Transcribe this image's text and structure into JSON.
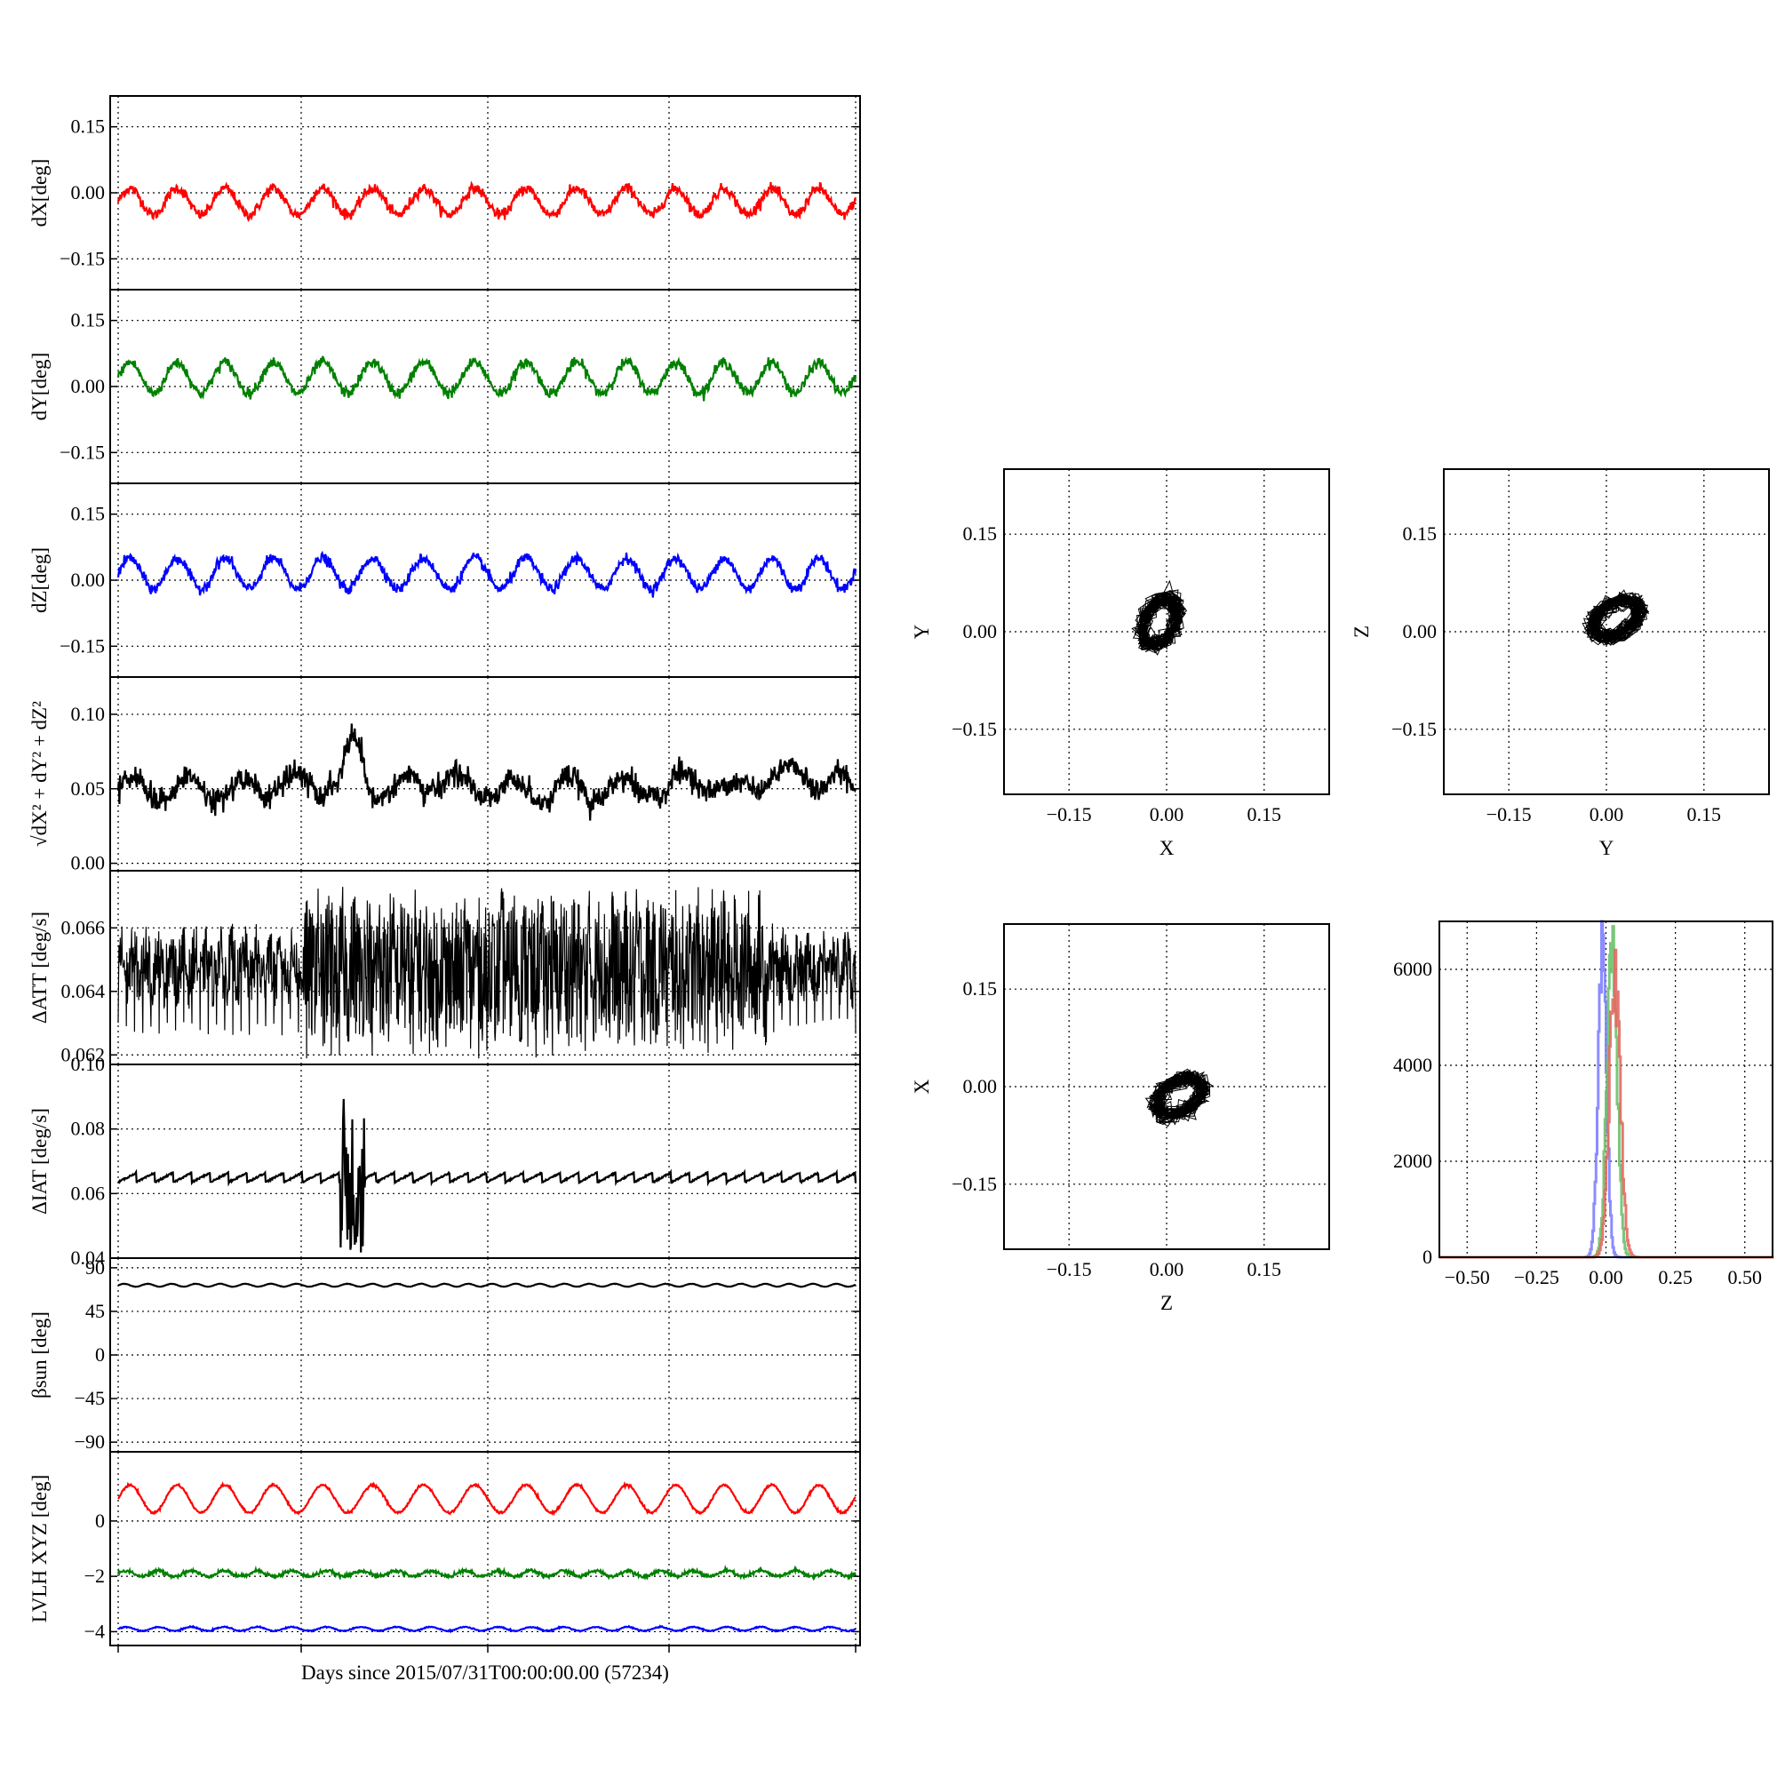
{
  "figure": {
    "xlabel": "Days since 2015/07/31T00:00:00.00 (57234)"
  },
  "colors": {
    "x": "#ff0000",
    "y": "#008000",
    "z": "#0000ff",
    "k": "#000000",
    "hist_x": "#e06a60",
    "hist_y": "#6cc16c",
    "hist_z": "#7f7fff"
  },
  "chart_data": [
    {
      "id": "dx",
      "type": "line",
      "ylabel": "dX[deg]",
      "ylim": [
        -0.22,
        0.22
      ],
      "yticks": [
        "0.15",
        "0.00",
        "−0.15"
      ],
      "ytick_values": [
        0.15,
        0.0,
        -0.15
      ],
      "grid": true,
      "series": [
        {
          "color": "x",
          "pattern": "wave",
          "mean": -0.02,
          "amplitude": 0.03,
          "cycles": 15,
          "noise": 0.006
        }
      ]
    },
    {
      "id": "dy",
      "type": "line",
      "ylabel": "dY[deg]",
      "ylim": [
        -0.22,
        0.22
      ],
      "yticks": [
        "0.15",
        "0.00",
        "−0.15"
      ],
      "ytick_values": [
        0.15,
        0.0,
        -0.15
      ],
      "grid": true,
      "series": [
        {
          "color": "y",
          "pattern": "wave",
          "mean": 0.02,
          "amplitude": 0.035,
          "cycles": 15,
          "noise": 0.006
        }
      ]
    },
    {
      "id": "dz",
      "type": "line",
      "ylabel": "dZ[deg]",
      "ylim": [
        -0.22,
        0.22
      ],
      "yticks": [
        "0.15",
        "0.00",
        "−0.15"
      ],
      "ytick_values": [
        0.15,
        0.0,
        -0.15
      ],
      "grid": true,
      "series": [
        {
          "color": "z",
          "pattern": "wave",
          "mean": 0.015,
          "amplitude": 0.035,
          "cycles": 15,
          "noise": 0.006
        }
      ]
    },
    {
      "id": "dr",
      "type": "line",
      "ylabel": "√dX² + dY² + dZ²",
      "ylim": [
        -0.005,
        0.125
      ],
      "yticks": [
        "0.10",
        "0.05",
        "0.00"
      ],
      "ytick_values": [
        0.1,
        0.05,
        0.0
      ],
      "grid": true,
      "series": [
        {
          "color": "k",
          "pattern": "noisy",
          "mean": 0.052,
          "amplitude": 0.012,
          "cycles": 15,
          "noise": 0.008
        }
      ]
    },
    {
      "id": "datt",
      "type": "line",
      "ylabel": "ΔATT [deg/s]",
      "ylim": [
        0.0617,
        0.0678
      ],
      "yticks": [
        "0.066",
        "0.064",
        "0.062"
      ],
      "ytick_values": [
        0.066,
        0.064,
        0.062
      ],
      "grid": true,
      "series": [
        {
          "color": "k",
          "pattern": "band",
          "mean": 0.0648,
          "amplitude": 0.0004,
          "cycles": 60,
          "noise": 0.0012
        }
      ]
    },
    {
      "id": "diat",
      "type": "line",
      "ylabel": "ΔIAT [deg/s]",
      "ylim": [
        0.04,
        0.1
      ],
      "yticks": [
        "0.10",
        "0.08",
        "0.06",
        "0.04"
      ],
      "ytick_values": [
        0.1,
        0.08,
        0.06,
        0.04
      ],
      "grid": true,
      "series": [
        {
          "color": "k",
          "pattern": "sawtooth",
          "mean": 0.065,
          "amplitude": 0.0015,
          "cycles": 40,
          "noise": 0.0005
        }
      ]
    },
    {
      "id": "beta",
      "type": "line",
      "ylabel": "βsun [deg]",
      "ylim": [
        -100,
        100
      ],
      "yticks": [
        "90",
        "45",
        "0",
        "−45",
        "−90"
      ],
      "ytick_values": [
        90,
        45,
        0,
        -45,
        -90
      ],
      "grid": true,
      "series": [
        {
          "color": "k",
          "pattern": "wave",
          "mean": 72,
          "amplitude": 1.5,
          "cycles": 30,
          "noise": 0.1
        }
      ]
    },
    {
      "id": "lvlh",
      "type": "line",
      "ylabel": "LVLH XYZ [deg]",
      "ylim": [
        -4.5,
        2.5
      ],
      "yticks": [
        "0",
        "−2",
        "−4"
      ],
      "ytick_values": [
        0,
        -2,
        -4
      ],
      "grid": true,
      "series": [
        {
          "color": "x",
          "pattern": "wave",
          "mean": 0.8,
          "amplitude": 0.5,
          "cycles": 15,
          "noise": 0.02
        },
        {
          "color": "y",
          "pattern": "wave",
          "mean": -1.9,
          "amplitude": 0.1,
          "cycles": 22,
          "noise": 0.03
        },
        {
          "color": "z",
          "pattern": "wave",
          "mean": -3.9,
          "amplitude": 0.07,
          "cycles": 22,
          "noise": 0.01
        }
      ]
    },
    {
      "id": "xy",
      "type": "scatter",
      "xlabel": "X",
      "ylabel": "Y",
      "xlim": [
        -0.25,
        0.25
      ],
      "ylim": [
        -0.25,
        0.25
      ],
      "ticks": [
        "−0.15",
        "0.00",
        "0.15"
      ],
      "tick_values": [
        -0.15,
        0.0,
        0.15
      ],
      "grid": true,
      "cloud": {
        "cx": -0.01,
        "cy": 0.015,
        "rx": 0.035,
        "ry": 0.045
      }
    },
    {
      "id": "yz",
      "type": "scatter",
      "xlabel": "Y",
      "ylabel": "Z",
      "xlim": [
        -0.25,
        0.25
      ],
      "ylim": [
        -0.25,
        0.25
      ],
      "ticks": [
        "−0.15",
        "0.00",
        "0.15"
      ],
      "tick_values": [
        -0.15,
        0.0,
        0.15
      ],
      "grid": true,
      "cloud": {
        "cx": 0.015,
        "cy": 0.02,
        "rx": 0.045,
        "ry": 0.035
      }
    },
    {
      "id": "zx",
      "type": "scatter",
      "xlabel": "Z",
      "ylabel": "X",
      "xlim": [
        -0.25,
        0.25
      ],
      "ylim": [
        -0.25,
        0.25
      ],
      "ticks": [
        "−0.15",
        "0.00",
        "0.15"
      ],
      "tick_values": [
        -0.15,
        0.0,
        0.15
      ],
      "grid": true,
      "cloud": {
        "cx": 0.02,
        "cy": -0.015,
        "rx": 0.045,
        "ry": 0.035
      }
    },
    {
      "id": "hist",
      "type": "bar",
      "xlim": [
        -0.6,
        0.6
      ],
      "ylim": [
        0,
        7000
      ],
      "xticks": [
        "−0.50",
        "−0.25",
        "0.00",
        "0.25",
        "0.50"
      ],
      "xtick_values": [
        -0.5,
        -0.25,
        0.0,
        0.25,
        0.5
      ],
      "yticks": [
        "6000",
        "4000",
        "2000",
        "0"
      ],
      "ytick_values": [
        6000,
        4000,
        2000,
        0
      ],
      "grid": true,
      "series": [
        {
          "color": "hist_z",
          "center": -0.015,
          "sigma": 0.015,
          "peak": 6600
        },
        {
          "color": "hist_y",
          "center": 0.02,
          "sigma": 0.018,
          "peak": 6800
        },
        {
          "color": "hist_x",
          "center": 0.03,
          "sigma": 0.02,
          "peak": 5850
        }
      ]
    }
  ]
}
